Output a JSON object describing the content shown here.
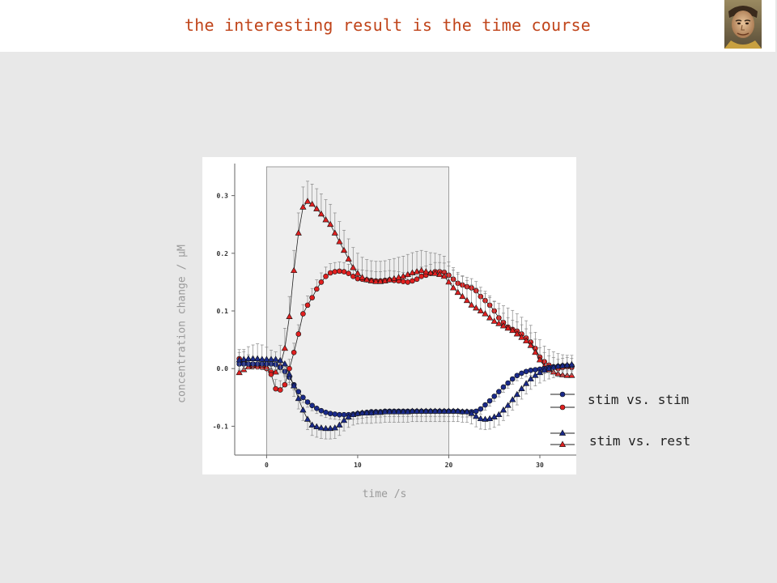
{
  "slide": {
    "title": "the interesting result is the time course"
  },
  "colors": {
    "title": "#c0441a",
    "background": "#e8e8e8",
    "stim_window": "#eeeeee",
    "red_series": "#e02020",
    "blue_series": "#1a2a8a",
    "error_bar": "#888888"
  },
  "chart_data": {
    "type": "line",
    "title": "",
    "xlabel": "time /s",
    "ylabel": "concentration change / µM",
    "xlim": [
      -3.5,
      34
    ],
    "ylim": [
      -0.15,
      0.35
    ],
    "x_ticks": [
      0,
      10,
      20,
      30
    ],
    "y_ticks": [
      -0.1,
      0.0,
      0.1,
      0.2,
      0.3
    ],
    "y_tick_labels": [
      "-0.1",
      "0.0",
      "0.1",
      "0.2",
      "0.3"
    ],
    "shaded_region": [
      0,
      20
    ],
    "grid": false,
    "legend": {
      "position": "right",
      "entries": [
        {
          "label": "stim vs. stim",
          "markers": [
            "blue-circle",
            "red-circle"
          ]
        },
        {
          "label": "stim vs. rest",
          "markers": [
            "blue-triangle",
            "red-triangle"
          ]
        }
      ]
    },
    "series": [
      {
        "marker": "circle",
        "color": "#e02020",
        "x": [
          -3,
          -2.5,
          -2,
          -1.5,
          -1,
          -0.5,
          0,
          0.5,
          1,
          1.5,
          2,
          2.5,
          3,
          3.5,
          4,
          4.5,
          5,
          5.5,
          6,
          6.5,
          7,
          7.5,
          8,
          8.5,
          9,
          9.5,
          10,
          10.5,
          11,
          11.5,
          12,
          12.5,
          13,
          13.5,
          14,
          14.5,
          15,
          15.5,
          16,
          16.5,
          17,
          17.5,
          18,
          18.5,
          19,
          19.5,
          20,
          20.5,
          21,
          21.5,
          22,
          22.5,
          23,
          23.5,
          24,
          24.5,
          25,
          25.5,
          26,
          26.5,
          27,
          27.5,
          28,
          28.5,
          29,
          29.5,
          30,
          30.5,
          31,
          31.5,
          32,
          32.5,
          33,
          33.5
        ],
        "y": [
          0.017,
          0.013,
          0.008,
          0.004,
          0.003,
          0.002,
          0.0,
          -0.01,
          -0.035,
          -0.037,
          -0.028,
          0.0,
          0.028,
          0.06,
          0.095,
          0.11,
          0.123,
          0.138,
          0.15,
          0.16,
          0.166,
          0.168,
          0.169,
          0.168,
          0.165,
          0.16,
          0.156,
          0.155,
          0.154,
          0.153,
          0.152,
          0.152,
          0.153,
          0.154,
          0.153,
          0.152,
          0.151,
          0.15,
          0.152,
          0.155,
          0.16,
          0.162,
          0.165,
          0.168,
          0.168,
          0.167,
          0.162,
          0.155,
          0.148,
          0.145,
          0.142,
          0.14,
          0.135,
          0.125,
          0.118,
          0.11,
          0.1,
          0.088,
          0.08,
          0.072,
          0.068,
          0.065,
          0.06,
          0.053,
          0.046,
          0.035,
          0.02,
          0.012,
          0.006,
          0.003,
          0.0,
          0.002,
          0.003,
          0.002
        ],
        "error": 0.016
      },
      {
        "marker": "triangle",
        "color": "#e02020",
        "x": [
          -3,
          -2.5,
          -2,
          -1.5,
          -1,
          -0.5,
          0,
          0.5,
          1,
          1.5,
          2,
          2.5,
          3,
          3.5,
          4,
          4.5,
          5,
          5.5,
          6,
          6.5,
          7,
          7.5,
          8,
          8.5,
          9,
          9.5,
          10,
          10.5,
          11,
          11.5,
          12,
          12.5,
          13,
          13.5,
          14,
          14.5,
          15,
          15.5,
          16,
          16.5,
          17,
          17.5,
          18,
          18.5,
          19,
          19.5,
          20,
          20.5,
          21,
          21.5,
          22,
          22.5,
          23,
          23.5,
          24,
          24.5,
          25,
          25.5,
          26,
          26.5,
          27,
          27.5,
          28,
          28.5,
          29,
          29.5,
          30,
          30.5,
          31,
          31.5,
          32,
          32.5,
          33,
          33.5
        ],
        "y": [
          -0.007,
          -0.002,
          0.003,
          0.006,
          0.008,
          0.006,
          0.002,
          -0.003,
          -0.006,
          0.005,
          0.035,
          0.09,
          0.17,
          0.235,
          0.28,
          0.29,
          0.285,
          0.277,
          0.268,
          0.258,
          0.25,
          0.235,
          0.22,
          0.205,
          0.19,
          0.175,
          0.165,
          0.158,
          0.154,
          0.152,
          0.151,
          0.151,
          0.152,
          0.154,
          0.156,
          0.158,
          0.16,
          0.163,
          0.166,
          0.168,
          0.17,
          0.168,
          0.166,
          0.165,
          0.163,
          0.16,
          0.15,
          0.14,
          0.132,
          0.125,
          0.118,
          0.11,
          0.105,
          0.1,
          0.095,
          0.088,
          0.082,
          0.078,
          0.074,
          0.07,
          0.066,
          0.06,
          0.054,
          0.048,
          0.04,
          0.028,
          0.015,
          0.004,
          -0.002,
          -0.006,
          -0.009,
          -0.011,
          -0.012,
          -0.012
        ],
        "error": 0.035
      },
      {
        "marker": "circle",
        "color": "#1a2a8a",
        "x": [
          -3,
          -2.5,
          -2,
          -1.5,
          -1,
          -0.5,
          0,
          0.5,
          1,
          1.5,
          2,
          2.5,
          3,
          3.5,
          4,
          4.5,
          5,
          5.5,
          6,
          6.5,
          7,
          7.5,
          8,
          8.5,
          9,
          9.5,
          10,
          10.5,
          11,
          11.5,
          12,
          12.5,
          13,
          13.5,
          14,
          14.5,
          15,
          15.5,
          16,
          16.5,
          17,
          17.5,
          18,
          18.5,
          19,
          19.5,
          20,
          20.5,
          21,
          21.5,
          22,
          22.5,
          23,
          23.5,
          24,
          24.5,
          25,
          25.5,
          26,
          26.5,
          27,
          27.5,
          28,
          28.5,
          29,
          29.5,
          30,
          30.5,
          31,
          31.5,
          32,
          32.5,
          33,
          33.5
        ],
        "y": [
          0.008,
          0.008,
          0.008,
          0.008,
          0.008,
          0.008,
          0.008,
          0.008,
          0.007,
          0.002,
          -0.005,
          -0.015,
          -0.028,
          -0.04,
          -0.05,
          -0.058,
          -0.064,
          -0.069,
          -0.073,
          -0.076,
          -0.078,
          -0.079,
          -0.08,
          -0.08,
          -0.08,
          -0.079,
          -0.078,
          -0.077,
          -0.076,
          -0.075,
          -0.075,
          -0.075,
          -0.074,
          -0.074,
          -0.074,
          -0.074,
          -0.074,
          -0.074,
          -0.074,
          -0.074,
          -0.074,
          -0.074,
          -0.074,
          -0.074,
          -0.074,
          -0.074,
          -0.074,
          -0.074,
          -0.074,
          -0.075,
          -0.075,
          -0.075,
          -0.074,
          -0.07,
          -0.063,
          -0.056,
          -0.048,
          -0.04,
          -0.032,
          -0.025,
          -0.018,
          -0.012,
          -0.008,
          -0.005,
          -0.003,
          -0.002,
          -0.001,
          0.0,
          0.002,
          0.003,
          0.004,
          0.005,
          0.005,
          0.005
        ],
        "error": 0.009
      },
      {
        "marker": "triangle",
        "color": "#1a2a8a",
        "x": [
          -3,
          -2.5,
          -2,
          -1.5,
          -1,
          -0.5,
          0,
          0.5,
          1,
          1.5,
          2,
          2.5,
          3,
          3.5,
          4,
          4.5,
          5,
          5.5,
          6,
          6.5,
          7,
          7.5,
          8,
          8.5,
          9,
          9.5,
          10,
          10.5,
          11,
          11.5,
          12,
          12.5,
          13,
          13.5,
          14,
          14.5,
          15,
          15.5,
          16,
          16.5,
          17,
          17.5,
          18,
          18.5,
          19,
          19.5,
          20,
          20.5,
          21,
          21.5,
          22,
          22.5,
          23,
          23.5,
          24,
          24.5,
          25,
          25.5,
          26,
          26.5,
          27,
          27.5,
          28,
          28.5,
          29,
          29.5,
          30,
          30.5,
          31,
          31.5,
          32,
          32.5,
          33,
          33.5
        ],
        "y": [
          0.015,
          0.016,
          0.017,
          0.017,
          0.017,
          0.016,
          0.016,
          0.016,
          0.016,
          0.014,
          0.008,
          -0.01,
          -0.03,
          -0.052,
          -0.072,
          -0.088,
          -0.098,
          -0.101,
          -0.103,
          -0.104,
          -0.104,
          -0.103,
          -0.098,
          -0.09,
          -0.084,
          -0.08,
          -0.078,
          -0.077,
          -0.077,
          -0.077,
          -0.076,
          -0.076,
          -0.075,
          -0.075,
          -0.075,
          -0.075,
          -0.075,
          -0.075,
          -0.074,
          -0.074,
          -0.074,
          -0.074,
          -0.074,
          -0.074,
          -0.074,
          -0.074,
          -0.074,
          -0.074,
          -0.074,
          -0.075,
          -0.075,
          -0.078,
          -0.083,
          -0.087,
          -0.088,
          -0.087,
          -0.084,
          -0.08,
          -0.072,
          -0.064,
          -0.054,
          -0.045,
          -0.035,
          -0.026,
          -0.018,
          -0.012,
          -0.007,
          -0.003,
          0.0,
          0.002,
          0.004,
          0.005,
          0.006,
          0.007
        ],
        "error": 0.018
      }
    ]
  }
}
